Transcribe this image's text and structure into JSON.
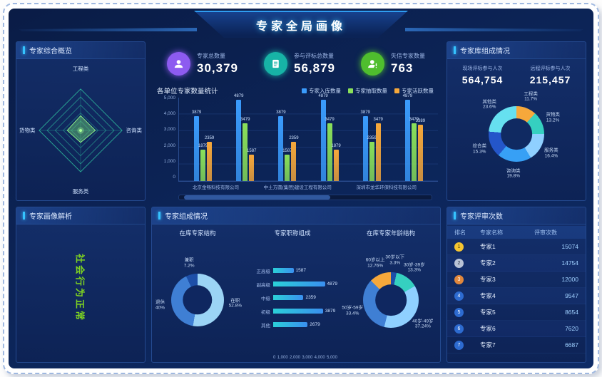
{
  "frame": {
    "title": "专家全局画像"
  },
  "overview": {
    "title": "专家综合概览",
    "axes": [
      "工程类",
      "咨询类",
      "服务类",
      "货物类"
    ]
  },
  "kpis": {
    "items": [
      {
        "label": "专家总数量",
        "value": "30,379",
        "icon": "user-icon",
        "color": "#8d5bf0"
      },
      {
        "label": "参与评标总数量",
        "value": "56,879",
        "icon": "document-icon",
        "color": "#17b3a6"
      },
      {
        "label": "失信专家数量",
        "value": "763",
        "icon": "user-alert-icon",
        "color": "#4fbe2e"
      }
    ]
  },
  "unit_chart": {
    "title": "各单位专家数量统计"
  },
  "library": {
    "title": "专家库组成情况",
    "stats": [
      {
        "label": "现场评标参与人次",
        "value": "564,754"
      },
      {
        "label": "远程评标参与人次",
        "value": "215,457"
      }
    ]
  },
  "portrait": {
    "title": "专家画像解析",
    "tag": "社会行为正常"
  },
  "compose": {
    "title": "专家组成情况",
    "sub_left": "在库专家结构",
    "sub_mid": "专家职称组成",
    "sub_right": "在库专家年龄结构"
  },
  "review": {
    "title": "专家评审次数",
    "headers": [
      "排名",
      "专家名称",
      "评审次数"
    ],
    "rows": [
      {
        "rank": 1,
        "name": "专家1",
        "count": "15074"
      },
      {
        "rank": 2,
        "name": "专家2",
        "count": "14754"
      },
      {
        "rank": 3,
        "name": "专家3",
        "count": "12000"
      },
      {
        "rank": 4,
        "name": "专家4",
        "count": "9547"
      },
      {
        "rank": 5,
        "name": "专家5",
        "count": "8654"
      },
      {
        "rank": 6,
        "name": "专家6",
        "count": "7620"
      },
      {
        "rank": 7,
        "name": "专家7",
        "count": "6687"
      }
    ]
  },
  "chart_data": [
    {
      "id": "unit_bar",
      "type": "bar",
      "title": "各单位专家数量统计",
      "x_labels": [
        "北京金畅科技有限公司",
        "中土方圆(集团)建设工程有限公司",
        "深圳市龙华环保科技有限公司"
      ],
      "group_count": 6,
      "series": [
        {
          "name": "专家入库数量",
          "color": "#3a9bfc",
          "values": [
            3879,
            4879,
            3879,
            4879,
            3879,
            4879
          ]
        },
        {
          "name": "专家抽取数量",
          "color": "#8ae05a",
          "values": [
            1879,
            3479,
            1587,
            3479,
            2359,
            3479
          ]
        },
        {
          "name": "专家活跃数量",
          "color": "#f6a83b",
          "values": [
            2359,
            1587,
            2359,
            1879,
            3479,
            3389
          ]
        }
      ],
      "ylim": [
        0,
        5000
      ],
      "yticks": [
        "0",
        "1,000",
        "2,000",
        "3,000",
        "4,000",
        "5,000"
      ],
      "grid": true,
      "legend_position": "top-right"
    },
    {
      "id": "library_donut",
      "type": "pie",
      "title": "专家库组成情况",
      "segments": [
        {
          "label": "工程类",
          "pct": 11.7,
          "color": "#f6a83b"
        },
        {
          "label": "货物类",
          "pct": 13.2,
          "color": "#35d0c0"
        },
        {
          "label": "服务类",
          "pct": 16.4,
          "color": "#8fd0ff"
        },
        {
          "label": "咨询类",
          "pct": 19.8,
          "color": "#37a0f5"
        },
        {
          "label": "综合类",
          "pct": 15.3,
          "color": "#2456c9"
        },
        {
          "label": "其他类",
          "pct": 23.6,
          "color": "#66e0f0"
        }
      ]
    },
    {
      "id": "struct_donut",
      "type": "pie",
      "title": "在库专家结构",
      "segments": [
        {
          "label": "在职",
          "pct": 52.8,
          "color": "#9bd4f5"
        },
        {
          "label": "退休",
          "pct": 40.0,
          "color": "#3f7fd4"
        },
        {
          "label": "兼职",
          "pct": 7.2,
          "color": "#1d4fa8"
        }
      ]
    },
    {
      "id": "compose_hbar",
      "type": "bar",
      "title": "专家职称组成",
      "categories": [
        "正高级",
        "副高级",
        "中级",
        "初级",
        "其他"
      ],
      "values": [
        1587,
        4879,
        2359,
        3879,
        2679
      ],
      "xlim": [
        0,
        5000
      ],
      "xticks": [
        "0",
        "1,000",
        "2,000",
        "3,000",
        "4,000",
        "5,000"
      ],
      "color": "#3fc8f0"
    },
    {
      "id": "age_donut",
      "type": "pie",
      "title": "在库专家年龄结构",
      "segments": [
        {
          "label": "30岁以下",
          "pct": 3.3,
          "color": "#1d4fa8"
        },
        {
          "label": "30岁-39岁",
          "pct": 13.3,
          "color": "#35d0c0"
        },
        {
          "label": "40岁-49岁",
          "pct": 37.24,
          "color": "#8fd0ff"
        },
        {
          "label": "50岁-59岁",
          "pct": 33.4,
          "color": "#3f7fd4"
        },
        {
          "label": "60岁以上",
          "pct": 12.76,
          "color": "#f6a83b"
        }
      ]
    },
    {
      "id": "overview_radar",
      "type": "radar",
      "axes": [
        "工程类",
        "咨询类",
        "服务类",
        "货物类"
      ],
      "rings": 5
    }
  ]
}
